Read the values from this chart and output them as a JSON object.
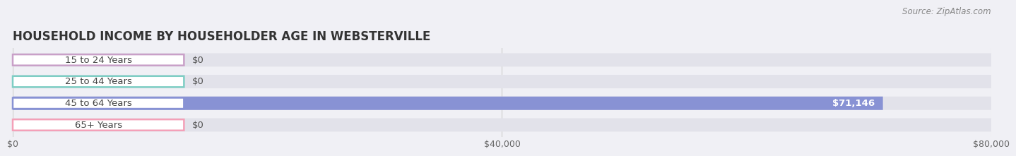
{
  "title": "HOUSEHOLD INCOME BY HOUSEHOLDER AGE IN WEBSTERVILLE",
  "source": "Source: ZipAtlas.com",
  "categories": [
    "15 to 24 Years",
    "25 to 44 Years",
    "45 to 64 Years",
    "65+ Years"
  ],
  "values": [
    0,
    0,
    71146,
    0
  ],
  "bar_colors": [
    "#c9a0c8",
    "#7ecec4",
    "#8892d4",
    "#f4a0b8"
  ],
  "max_value": 80000,
  "xticks": [
    0,
    40000,
    80000
  ],
  "xtick_labels": [
    "$0",
    "$40,000",
    "$80,000"
  ],
  "bar_height": 0.62,
  "fig_bg_color": "#f0f0f5",
  "bar_bg_color": "#e2e2ea",
  "title_fontsize": 12,
  "label_fontsize": 9.5,
  "value_fontsize": 9.5,
  "axis_fontsize": 9,
  "source_fontsize": 8.5,
  "grid_color": "#cccccc",
  "pill_border_colors": [
    "#c9a0c8",
    "#7ecec4",
    "#8892d4",
    "#f4a0b8"
  ]
}
